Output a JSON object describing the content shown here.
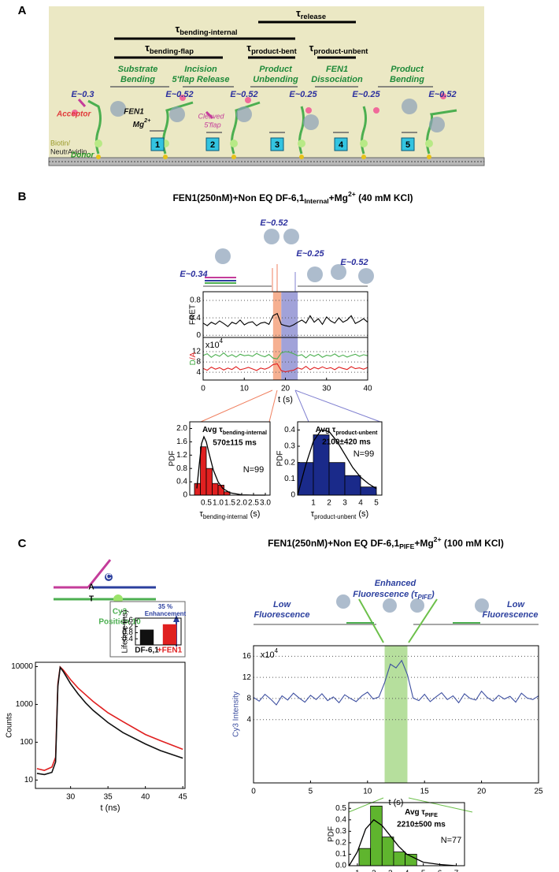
{
  "panel_a": {
    "label": "A",
    "tau_release": {
      "main": "τ",
      "sub": "release"
    },
    "tau_bending_internal": {
      "main": "τ",
      "sub": "bending-internal"
    },
    "tau_bending_flap": {
      "main": "τ",
      "sub": "bending-flap"
    },
    "tau_product_bent": {
      "main": "τ",
      "sub": "product-bent"
    },
    "tau_product_unbent": {
      "main": "τ",
      "sub": "product-unbent"
    },
    "steps": [
      [
        "Substrate",
        "Bending"
      ],
      [
        "Incision",
        "5'flap Release"
      ],
      [
        "Product",
        "Unbending"
      ],
      [
        "FEN1",
        "Dissociation"
      ],
      [
        "Product",
        "Bending"
      ]
    ],
    "fret_states": [
      "E~0.3",
      "E~0.52",
      "E~0.52",
      "E~0.25",
      "E~0.25",
      "E~0.52"
    ],
    "acceptor": "Acceptor",
    "fen1": "FEN1",
    "mg": {
      "main": "Mg",
      "sup": "2+"
    },
    "cleaved": [
      "Cleaved",
      "5'flap"
    ],
    "biotin": "Biotin/",
    "neutravidin": "NeutrAvidin",
    "donor": "Donor",
    "step_numbers": [
      "1",
      "2",
      "3",
      "4",
      "5"
    ]
  },
  "panel_b": {
    "label": "B",
    "title": {
      "main": "FEN1(250nM)+Non EQ DF-6,1",
      "sub": "Internal",
      "mid": "+Mg",
      "sup": "2+",
      "tail": " (40 mM KCl)"
    },
    "states": [
      "E~0.52",
      "E~0.25",
      "E~0.52",
      "E~0.34"
    ]
  },
  "panel_c": {
    "label": "C",
    "title": {
      "main": "FEN1(250nM)+Non EQ DF-6,1",
      "sub": "PIFE",
      "mid": "+Mg",
      "sup": "2+",
      "tail": "     (100 mM KCl)"
    },
    "diagram": {
      "a": "A",
      "t": "T",
      "c": "C",
      "dye": "Cy3",
      "position": "Position 10"
    },
    "states": {
      "low_left": [
        "Low",
        "Fluorescence"
      ],
      "enhanced": [
        "Enhanced",
        {
          "main": "Fluorescence (τ",
          "sub": "PIFE",
          "tail": ")"
        }
      ],
      "low_right": [
        "Low",
        "Fluorescence"
      ]
    },
    "enhancement": [
      "35 %",
      "Enhancement"
    ]
  },
  "chart_data": [
    {
      "type": "line",
      "ylabel": "FRET",
      "x": [
        0,
        1,
        2,
        3,
        4,
        5,
        6,
        7,
        8,
        9,
        10,
        11,
        12,
        13,
        14,
        15,
        16,
        17,
        18,
        19,
        20,
        21,
        22,
        23,
        24,
        25,
        26,
        27,
        28,
        29,
        30,
        31,
        32,
        33,
        34,
        35,
        36,
        37,
        38,
        39,
        40
      ],
      "series": [
        {
          "color": "#000000",
          "values": [
            0.28,
            0.22,
            0.3,
            0.25,
            0.33,
            0.27,
            0.2,
            0.3,
            0.26,
            0.35,
            0.24,
            0.29,
            0.31,
            0.22,
            0.28,
            0.3,
            0.25,
            0.45,
            0.5,
            0.25,
            0.22,
            0.2,
            0.24,
            0.3,
            0.35,
            0.28,
            0.45,
            0.3,
            0.38,
            0.25,
            0.42,
            0.33,
            0.28,
            0.4,
            0.3,
            0.35,
            0.45,
            0.27,
            0.32,
            0.38,
            0.3
          ]
        }
      ],
      "xlim": [
        0,
        40
      ],
      "ylim": [
        -0.05,
        1.0
      ],
      "yticks": [
        0,
        0.4,
        0.8
      ],
      "grid": true,
      "spans": [
        {
          "range": [
            17,
            19
          ],
          "color": "#f4a27e"
        },
        {
          "range": [
            19,
            23
          ],
          "color": "#9192d2"
        }
      ]
    },
    {
      "type": "line",
      "ylabel": [
        "D",
        "/",
        "A"
      ],
      "y_multiplier": {
        "main": "x10",
        "sup": "4"
      },
      "x": [
        0,
        1,
        2,
        3,
        4,
        5,
        6,
        7,
        8,
        9,
        10,
        11,
        12,
        13,
        14,
        15,
        16,
        17,
        18,
        19,
        20,
        21,
        22,
        23,
        24,
        25,
        26,
        27,
        28,
        29,
        30,
        31,
        32,
        33,
        34,
        35,
        36,
        37,
        38,
        39,
        40
      ],
      "series": [
        {
          "color": "#4caf50",
          "values": [
            10.5,
            11.2,
            9.8,
            10.9,
            10.2,
            11.5,
            10.1,
            10.8,
            9.9,
            11,
            10.4,
            10.7,
            10.2,
            11.3,
            10.5,
            10,
            10.9,
            9.5,
            9.2,
            11.5,
            12,
            11.8,
            11.2,
            10.4,
            10.8,
            9.6,
            10.9,
            10.2,
            11,
            9.8,
            10.6,
            10.3,
            11.1,
            10,
            10.7,
            9.9,
            10.5,
            11,
            10.2,
            10.8,
            10.4
          ]
        },
        {
          "color": "#e02020",
          "values": [
            5.5,
            4.8,
            6,
            5.2,
            5.8,
            4.9,
            5.6,
            5.1,
            6.2,
            5,
            5.4,
            5.9,
            5.3,
            4.7,
            5.6,
            5.2,
            5.8,
            7,
            7.3,
            4.6,
            4.2,
            4.5,
            4.8,
            5.7,
            5.2,
            6.3,
            5,
            5.9,
            5.3,
            6.1,
            5.4,
            5.8,
            5,
            6,
            5.5,
            5.1,
            6.2,
            5.4,
            5.7,
            5.2,
            5.9
          ]
        }
      ],
      "xlim": [
        0,
        40
      ],
      "ylim": [
        1,
        17.5
      ],
      "xticks": [
        0,
        10,
        20,
        30,
        40
      ],
      "yticks": [
        4,
        8,
        12
      ],
      "xlabel": "t (s)",
      "grid": true,
      "spans": [
        {
          "range": [
            17,
            19
          ],
          "color": "#f4a27e"
        },
        {
          "range": [
            19,
            23
          ],
          "color": "#9192d2"
        }
      ]
    },
    {
      "type": "histogram",
      "color": "#e02020",
      "bins": [
        0,
        0.25,
        0.5,
        0.75,
        1.0,
        1.25,
        1.5
      ],
      "values": [
        0.35,
        1.45,
        0.8,
        0.35,
        0.3,
        0.1
      ],
      "fit": {
        "x": [
          0.1,
          0.2,
          0.3,
          0.4,
          0.5,
          0.6,
          0.8,
          1.0,
          1.2,
          1.5,
          2.0,
          2.5,
          3.0
        ],
        "values": [
          0.2,
          0.9,
          1.55,
          1.75,
          1.6,
          1.3,
          0.75,
          0.4,
          0.2,
          0.07,
          0.01,
          0,
          0
        ]
      },
      "xlim": [
        -0.2,
        3.2
      ],
      "ylim": [
        0,
        2.2
      ],
      "xticks": [
        0.5,
        {
          "value": 1,
          "label": "1.0"
        },
        1.5,
        {
          "value": 2,
          "label": "2.0"
        },
        2.5,
        {
          "value": 3,
          "label": "3.0"
        }
      ],
      "yticks": [
        0,
        0.4,
        0.8,
        1.2,
        1.6,
        {
          "value": 2,
          "label": "2.0"
        }
      ],
      "xlabel": {
        "main": "τ",
        "sub": "bending-internal",
        "tail": " (s)"
      },
      "ylabel": "PDF",
      "annotations": {
        "avg": {
          "main": "Avg τ",
          "sub": "bending-internal"
        },
        "value": "570±115 ms",
        "n": "N=99"
      }
    },
    {
      "type": "histogram",
      "color": "#1a2a8a",
      "bins": [
        0,
        1,
        2,
        3,
        4,
        5
      ],
      "values": [
        0.2,
        0.37,
        0.2,
        0.12,
        0.05
      ],
      "fit": {
        "x": [
          0,
          0.5,
          1,
          1.5,
          2,
          2.5,
          3,
          3.5,
          4,
          4.5,
          5
        ],
        "values": [
          0,
          0.18,
          0.33,
          0.4,
          0.39,
          0.33,
          0.25,
          0.17,
          0.11,
          0.07,
          0.04
        ]
      },
      "xlim": [
        0,
        5.35
      ],
      "ylim": [
        0,
        0.45
      ],
      "xticks": [
        1,
        2,
        3,
        4,
        5
      ],
      "yticks": [
        0,
        0.1,
        0.2,
        0.3,
        0.4
      ],
      "xlabel": {
        "main": "τ",
        "sub": "product-unbent",
        "tail": " (s)"
      },
      "ylabel": "PDF",
      "annotations": {
        "avg": {
          "main": "Avg τ",
          "sub": "product-unbent"
        },
        "value": "2100±420 ms",
        "n": "N=99"
      }
    },
    {
      "type": "line",
      "log_y": true,
      "ylabel": "Counts",
      "xlabel": "t (ns)",
      "x": [
        25.5,
        26.5,
        27.5,
        28,
        28.3,
        28.6,
        29,
        30,
        31,
        32,
        33,
        35,
        37,
        40,
        42,
        45
      ],
      "series": [
        {
          "color": "#e02020",
          "values": [
            20,
            18,
            22,
            40,
            3500,
            9800,
            8200,
            4500,
            2700,
            1800,
            1200,
            600,
            350,
            160,
            110,
            65
          ]
        },
        {
          "color": "#111111",
          "values": [
            15,
            14,
            16,
            30,
            3000,
            9500,
            7500,
            3500,
            1900,
            1100,
            700,
            330,
            180,
            90,
            60,
            38
          ]
        }
      ],
      "xlim": [
        25.3,
        45.3
      ],
      "ylim": [
        6,
        13000
      ],
      "xticks": [
        30,
        35,
        40,
        45
      ],
      "yticks": [
        10,
        100,
        1000,
        10000
      ]
    },
    {
      "type": "bar",
      "ylabel": "Lifetime (ns)",
      "categories": [
        "DF-6,1",
        "+FEN1"
      ],
      "values": [
        1.0,
        1.35
      ],
      "colors": [
        "#111111",
        "#e02020"
      ],
      "ylim": [
        0,
        1.75
      ],
      "yticks": [
        0.4,
        0.8,
        1.2,
        1.6
      ]
    },
    {
      "type": "line",
      "ylabel": "Cy3 Intensity",
      "xlabel": "t (s)",
      "y_multiplier": {
        "main": "x10",
        "sup": "4"
      },
      "x": [
        0,
        0.5,
        1,
        1.5,
        2,
        2.5,
        3,
        3.5,
        4,
        4.5,
        5,
        5.5,
        6,
        6.5,
        7,
        7.5,
        8,
        8.5,
        9,
        9.5,
        10,
        10.5,
        11,
        11.5,
        12,
        12.5,
        13,
        13.5,
        14,
        14.5,
        15,
        15.5,
        16,
        16.5,
        17,
        17.5,
        18,
        18.5,
        19,
        19.5,
        20,
        20.5,
        21,
        21.5,
        22,
        22.5,
        23,
        23.5,
        24,
        24.5,
        25
      ],
      "series": [
        {
          "color": "#3d4fa0",
          "values": [
            8.2,
            7.5,
            8.8,
            7.9,
            6.8,
            8.5,
            7.7,
            9,
            8.1,
            7.3,
            8.6,
            7.8,
            8.9,
            7.6,
            8.3,
            7.2,
            8.7,
            8,
            7.4,
            8.5,
            9.2,
            7.9,
            8.3,
            11,
            14.5,
            13.8,
            15.2,
            12.5,
            8.1,
            7.6,
            8.8,
            7.4,
            8.3,
            9.1,
            7.8,
            8.5,
            7.2,
            8.9,
            8,
            7.7,
            9.4,
            8.2,
            7.5,
            8.6,
            7.9,
            8.4,
            7.3,
            9,
            8.1,
            7.8,
            8.5
          ]
        }
      ],
      "xlim": [
        0,
        25
      ],
      "ylim": [
        -8,
        18
      ],
      "xticks": [
        0,
        5,
        10,
        15,
        20,
        25
      ],
      "yticks": [
        4,
        8,
        12,
        16
      ],
      "grid": true,
      "spans": [
        {
          "range": [
            11.5,
            13.5
          ],
          "color": "#a9d98c"
        }
      ]
    },
    {
      "type": "histogram",
      "color": "#5fb52e",
      "bins": [
        1.1,
        1.8,
        2.5,
        3.2,
        3.9,
        4.6
      ],
      "values": [
        0.15,
        0.52,
        0.25,
        0.12,
        0.1
      ],
      "fit": {
        "x": [
          0.5,
          1,
          1.5,
          2,
          2.5,
          3,
          3.5,
          4,
          5,
          6,
          7
        ],
        "values": [
          0,
          0.12,
          0.32,
          0.4,
          0.35,
          0.26,
          0.17,
          0.1,
          0.03,
          0.01,
          0
        ]
      },
      "xlim": [
        0.48,
        7.5
      ],
      "ylim": [
        0,
        0.55
      ],
      "xticks": [
        1,
        2,
        3,
        4,
        5,
        6,
        7
      ],
      "yticks": [
        {
          "value": 0,
          "label": "0.0"
        },
        0.1,
        0.2,
        0.3,
        0.4,
        0.5
      ],
      "xlabel": {
        "main": "τ",
        "sub": "PIFE",
        "tail": " (s)"
      },
      "ylabel": "PDF",
      "annotations": {
        "avg": {
          "main": "Avg τ",
          "sub": "PIFE"
        },
        "value": "2210±500 ms",
        "n": "N=77"
      }
    }
  ]
}
